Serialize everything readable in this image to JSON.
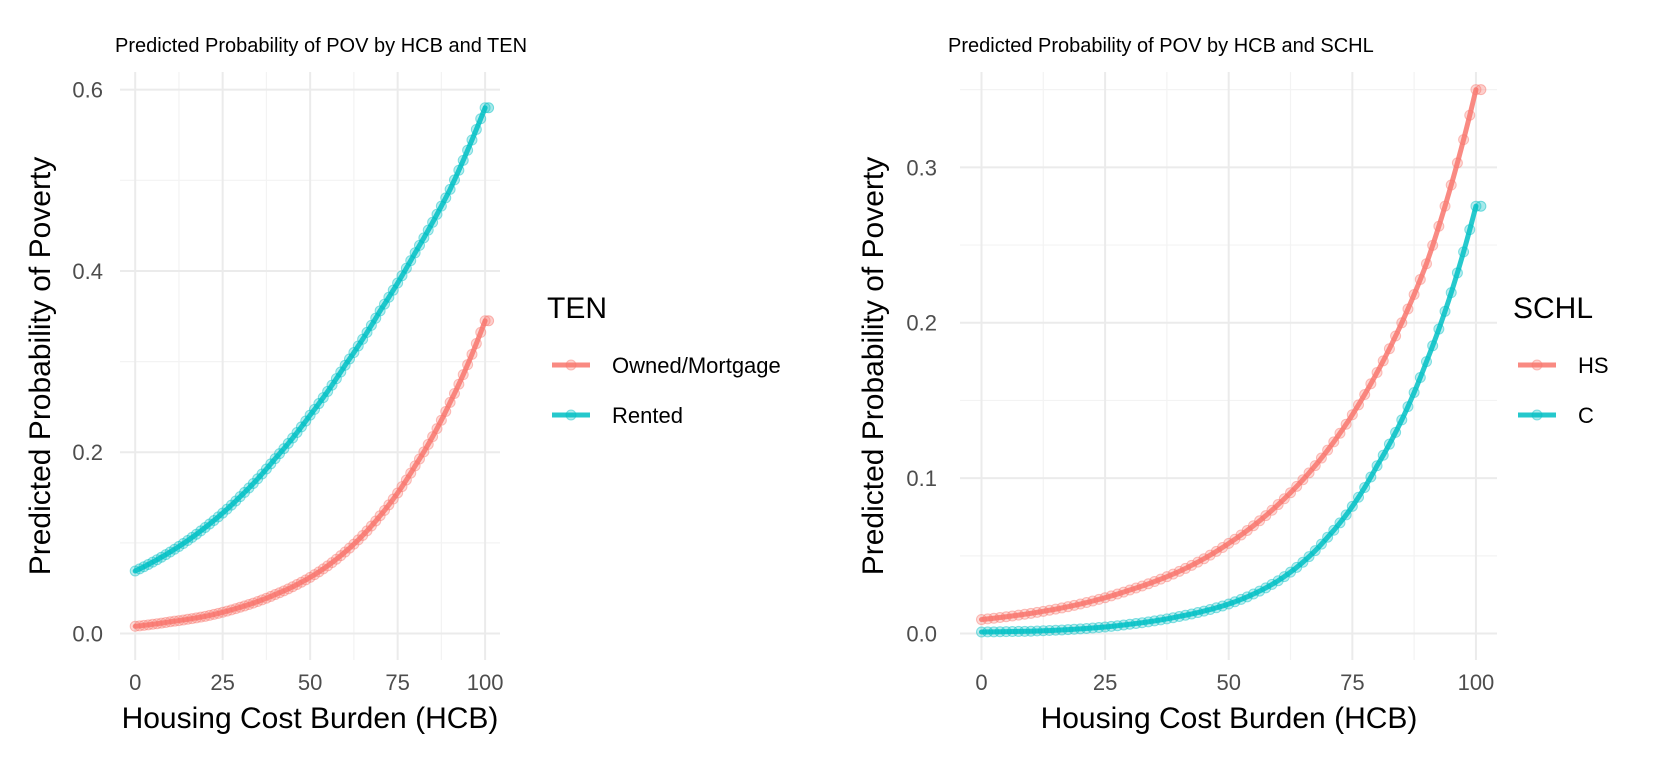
{
  "chart_data": [
    {
      "type": "line",
      "title": "Predicted Probability of POV by HCB and TEN",
      "xlabel": "Housing Cost Burden (HCB)",
      "ylabel": "Predicted Probability of Poverty",
      "xlim": [
        0,
        101
      ],
      "ylim": [
        0,
        0.6
      ],
      "x_ticks": [
        0,
        25,
        50,
        75,
        100
      ],
      "x_tick_labels": [
        "0",
        "25",
        "50",
        "75",
        "100"
      ],
      "y_ticks": [
        0,
        0.2,
        0.4,
        0.6
      ],
      "y_tick_labels": [
        "0.0",
        "0.2",
        "0.4",
        "0.6"
      ],
      "grid": true,
      "legend": {
        "title": "TEN",
        "position": "right"
      },
      "points_and_line": true,
      "series": [
        {
          "name": "Owned/Mortgage",
          "color": "#F8766D",
          "x": [
            0,
            10,
            20,
            30,
            40,
            50,
            60,
            70,
            80,
            90,
            100
          ],
          "values": [
            0.008,
            0.013,
            0.019,
            0.029,
            0.043,
            0.062,
            0.09,
            0.13,
            0.185,
            0.255,
            0.345
          ]
        },
        {
          "name": "Rented",
          "color": "#00BFC4",
          "x": [
            0,
            10,
            20,
            30,
            40,
            50,
            60,
            70,
            80,
            90,
            100
          ],
          "values": [
            0.069,
            0.09,
            0.117,
            0.151,
            0.193,
            0.241,
            0.296,
            0.356,
            0.42,
            0.49,
            0.58
          ]
        }
      ]
    },
    {
      "type": "line",
      "title": "Predicted Probability of POV by HCB and SCHL",
      "xlabel": "Housing Cost Burden (HCB)",
      "ylabel": "Predicted Probability of Poverty",
      "xlim": [
        0,
        101
      ],
      "ylim": [
        0,
        0.35
      ],
      "x_ticks": [
        0,
        25,
        50,
        75,
        100
      ],
      "x_tick_labels": [
        "0",
        "25",
        "50",
        "75",
        "100"
      ],
      "y_ticks": [
        0,
        0.1,
        0.2,
        0.3
      ],
      "y_tick_labels": [
        "0.0",
        "0.1",
        "0.2",
        "0.3"
      ],
      "grid": true,
      "legend": {
        "title": "SCHL",
        "position": "right"
      },
      "points_and_line": true,
      "series": [
        {
          "name": "HS",
          "color": "#F8766D",
          "x": [
            0,
            10,
            20,
            30,
            40,
            50,
            60,
            70,
            80,
            90,
            100
          ],
          "values": [
            0.009,
            0.013,
            0.019,
            0.028,
            0.04,
            0.058,
            0.083,
            0.118,
            0.168,
            0.238,
            0.35
          ]
        },
        {
          "name": "C",
          "color": "#00BFC4",
          "x": [
            0,
            10,
            20,
            30,
            40,
            50,
            60,
            70,
            80,
            90,
            100
          ],
          "values": [
            0.001,
            0.0015,
            0.003,
            0.006,
            0.011,
            0.019,
            0.034,
            0.062,
            0.108,
            0.175,
            0.275
          ]
        }
      ]
    }
  ]
}
